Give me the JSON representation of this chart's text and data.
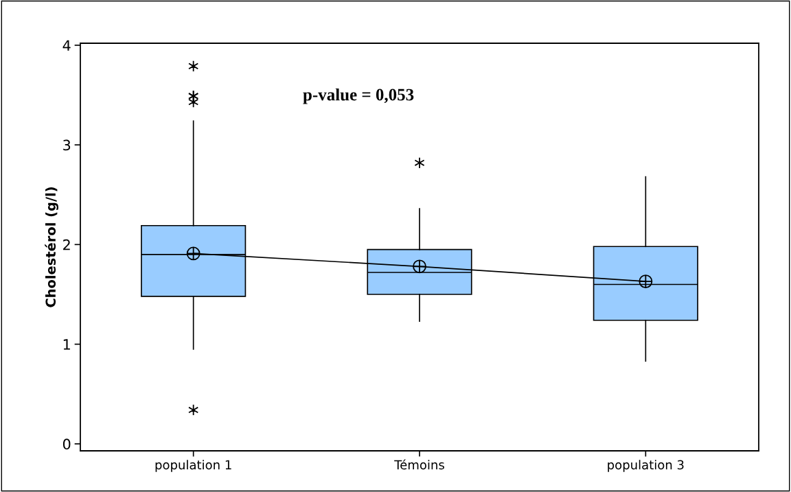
{
  "chart_data": {
    "type": "box",
    "ylabel": "Cholestérol (g/l)",
    "categories": [
      "population 1",
      "Témoins",
      "population 3"
    ],
    "ylim": [
      -0.07,
      4.02
    ],
    "yticks": [
      0,
      1,
      2,
      3,
      4
    ],
    "grid": false,
    "legend": false,
    "series": [
      {
        "color": "#99ccff",
        "boxes": [
          {
            "low": 0.95,
            "q1": 1.48,
            "median": 1.9,
            "q3": 2.19,
            "high": 3.24,
            "outliers": [
              3.79,
              3.49,
              3.49,
              3.43,
              0.34
            ]
          },
          {
            "low": 1.23,
            "q1": 1.5,
            "median": 1.72,
            "q3": 1.95,
            "high": 2.36,
            "outliers": [
              2.82
            ]
          },
          {
            "low": 0.83,
            "q1": 1.24,
            "median": 1.6,
            "q3": 1.98,
            "high": 2.68
          }
        ]
      },
      {
        "type": "line",
        "color": "#000000",
        "marker": "cross",
        "values": [
          1.91,
          1.78,
          1.63
        ]
      }
    ],
    "annotations": [
      "p-value = 0,053"
    ]
  }
}
